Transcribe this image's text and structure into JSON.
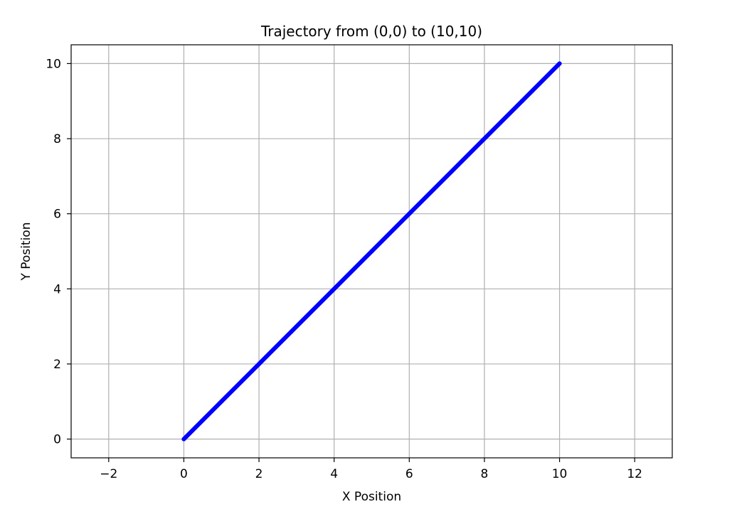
{
  "chart_data": {
    "type": "line",
    "title": "Trajectory from (0,0) to (10,10)",
    "xlabel": "X Position",
    "ylabel": "Y Position",
    "xlim": [
      -3,
      13
    ],
    "ylim": [
      -0.5,
      10.5
    ],
    "xticks": [
      -2,
      0,
      2,
      4,
      6,
      8,
      10,
      12
    ],
    "yticks": [
      0,
      2,
      4,
      6,
      8,
      10
    ],
    "xtick_labels": [
      "−2",
      "0",
      "2",
      "4",
      "6",
      "8",
      "10",
      "12"
    ],
    "ytick_labels": [
      "0",
      "2",
      "4",
      "6",
      "8",
      "10"
    ],
    "grid": true,
    "series": [
      {
        "color": "#0000ff",
        "x": [
          0,
          1,
          2,
          3,
          4,
          5,
          6,
          7,
          8,
          9,
          10
        ],
        "y": [
          0,
          1,
          2,
          3,
          4,
          5,
          6,
          7,
          8,
          9,
          10
        ]
      }
    ],
    "colors": {
      "grid": "#b0b0b0",
      "frame": "#000000",
      "line": "#0000ff"
    }
  }
}
